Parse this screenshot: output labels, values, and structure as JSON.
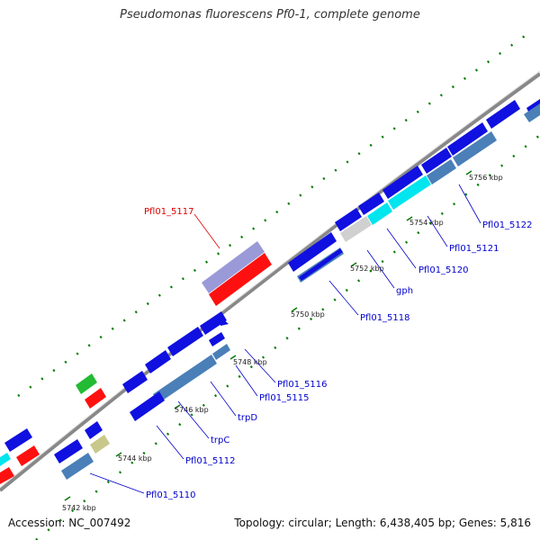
{
  "title": "Pseudomonas fluorescens Pf0-1, complete genome",
  "footer": {
    "accession": "Accession: NC_007492",
    "summary": "Topology: circular; Length: 6,438,405 bp; Genes: 5,816"
  },
  "ticks": [
    "5742 kbp",
    "5744 kbp",
    "5746 kbp",
    "5748 kbp",
    "5750 kbp",
    "5752 kbp",
    "5754 kbp",
    "5756 kbp"
  ],
  "gene_labels": {
    "pfl5117": "Pfl01_5117",
    "pfl5122": "Pfl01_5122",
    "pfl5121": "Pfl01_5121",
    "pfl5120": "Pfl01_5120",
    "gph": "gph",
    "pfl5118": "Pfl01_5118",
    "pfl5116": "Pfl01_5116",
    "pfl5115": "Pfl01_5115",
    "trpD": "trpD",
    "trpC": "trpC",
    "pfl5112": "Pfl01_5112",
    "pfl5110": "Pfl01_5110"
  },
  "colors": {
    "cds_forward": "#1010e0",
    "cds_blue_light": "#4a7fb8",
    "cds_cyan": "#00e5ee",
    "rrna_red": "#ff1010",
    "gene_purple": "#9a9ad8",
    "gene_green": "#22bb33",
    "gene_olive": "#c8c88a",
    "gene_grey": "#d0d0d0",
    "backbone": "#888888",
    "gc_dots": "#007a00",
    "label_blue": "#0000cc",
    "label_red": "#dd0000"
  }
}
